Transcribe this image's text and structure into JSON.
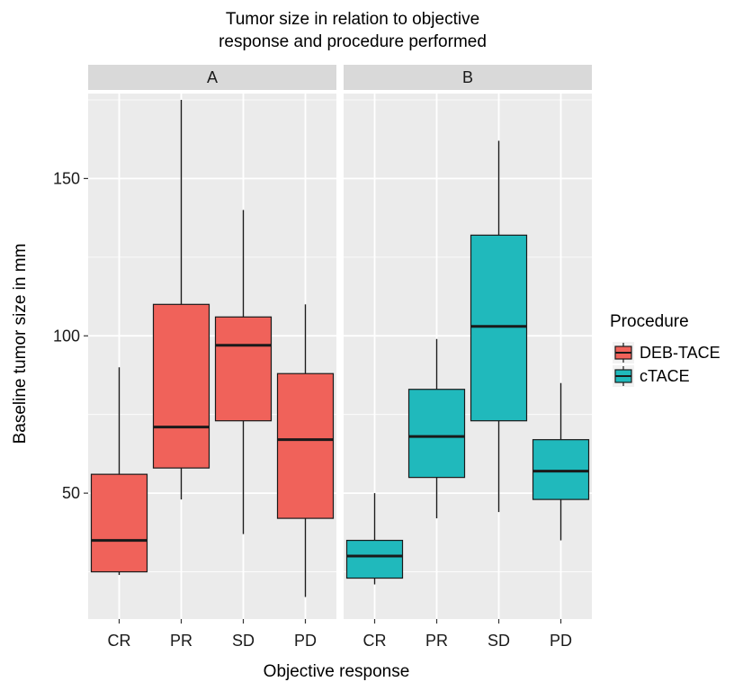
{
  "chart_data": {
    "type": "boxplot",
    "title_lines": [
      "Tumor size in relation to objective",
      "response and procedure performed"
    ],
    "xlabel": "Objective response",
    "ylabel": "Baseline tumor size in mm",
    "categories": [
      "CR",
      "PR",
      "SD",
      "PD"
    ],
    "ylim": [
      10,
      177
    ],
    "yticks": [
      50,
      100,
      150
    ],
    "grid": true,
    "facets": [
      {
        "label": "A",
        "procedure": "DEB-TACE",
        "boxes": [
          {
            "category": "CR",
            "min": 24,
            "q1": 25,
            "median": 35,
            "q3": 56,
            "max": 90
          },
          {
            "category": "PR",
            "min": 48,
            "q1": 58,
            "median": 71,
            "q3": 110,
            "max": 175
          },
          {
            "category": "SD",
            "min": 37,
            "q1": 73,
            "median": 97,
            "q3": 106,
            "max": 140
          },
          {
            "category": "PD",
            "min": 17,
            "q1": 42,
            "median": 67,
            "q3": 88,
            "max": 110
          }
        ]
      },
      {
        "label": "B",
        "procedure": "cTACE",
        "boxes": [
          {
            "category": "CR",
            "min": 21,
            "q1": 23,
            "median": 30,
            "q3": 35,
            "max": 50
          },
          {
            "category": "PR",
            "min": 42,
            "q1": 55,
            "median": 68,
            "q3": 83,
            "max": 99
          },
          {
            "category": "SD",
            "min": 44,
            "q1": 73,
            "median": 103,
            "q3": 132,
            "max": 162
          },
          {
            "category": "PD",
            "min": 35,
            "q1": 48,
            "median": 57,
            "q3": 67,
            "max": 85
          }
        ]
      }
    ],
    "legend": {
      "title": "Procedure",
      "position": "right",
      "items": [
        {
          "label": "DEB-TACE",
          "color": "#F0625A"
        },
        {
          "label": "cTACE",
          "color": "#20B9BC"
        }
      ]
    }
  },
  "colors": {
    "panel_bg": "#EBEBEB",
    "strip_bg": "#D9D9D9",
    "grid": "#FFFFFF"
  }
}
